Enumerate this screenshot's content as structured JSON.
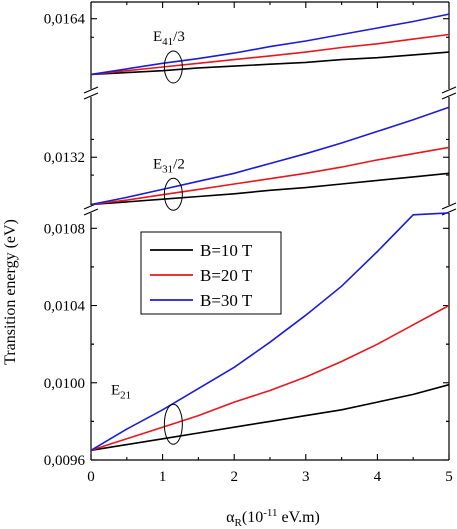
{
  "chart_data": {
    "type": "line",
    "xlabel": {
      "main": "α",
      "sub": "R",
      "rest": "(10",
      "sup": "-11",
      "tail": " eV.m)"
    },
    "ylabel": "Transition energy (eV)",
    "xlim": [
      0,
      5
    ],
    "x_ticks": [
      "0",
      "1",
      "2",
      "3",
      "4",
      "5"
    ],
    "legend_position": "left-middle",
    "colors": {
      "B=10 T": "#000000",
      "B=20 T": "#e8171b",
      "B=30 T": "#1c1cd6"
    },
    "legend": [
      "B=10 T",
      "B=20 T",
      "B=30 T"
    ],
    "panels": [
      {
        "id": "E41",
        "annotation": {
          "main": "E",
          "sub": "41",
          "tail": "/3"
        },
        "ylim": [
          0.0156,
          0.01658
        ],
        "y_ticks": [
          {
            "value": 0.0164,
            "label": "0,0164"
          }
        ],
        "x": [
          0,
          0.5,
          1,
          1.5,
          2,
          2.5,
          3,
          3.5,
          4,
          4.5,
          5
        ],
        "series": [
          {
            "name": "B=10 T",
            "values": [
              0.0158,
              0.01582,
              0.01584,
              0.01587,
              0.01589,
              0.01591,
              0.01593,
              0.01596,
              0.01598,
              0.01601,
              0.01604
            ]
          },
          {
            "name": "B=20 T",
            "values": [
              0.0158,
              0.01584,
              0.01588,
              0.01592,
              0.01596,
              0.016,
              0.01604,
              0.01609,
              0.01613,
              0.01618,
              0.01623
            ]
          },
          {
            "name": "B=30 T",
            "values": [
              0.0158,
              0.01586,
              0.01592,
              0.01597,
              0.01603,
              0.0161,
              0.01616,
              0.01623,
              0.0163,
              0.01637,
              0.01645
            ]
          }
        ]
      },
      {
        "id": "E31",
        "annotation": {
          "main": "E",
          "sub": "31",
          "tail": "/2"
        },
        "ylim": [
          0.01262,
          0.01392
        ],
        "y_ticks": [
          {
            "value": 0.0132,
            "label": "0,0132"
          }
        ],
        "x": [
          0,
          0.5,
          1,
          1.5,
          2,
          2.5,
          3,
          3.5,
          4,
          4.5,
          5
        ],
        "series": [
          {
            "name": "B=10 T",
            "values": [
              0.01267,
              0.0127,
              0.01273,
              0.01276,
              0.01279,
              0.01283,
              0.01286,
              0.0129,
              0.01294,
              0.01298,
              0.01302
            ]
          },
          {
            "name": "B=20 T",
            "values": [
              0.01267,
              0.01272,
              0.01278,
              0.01284,
              0.0129,
              0.01296,
              0.01302,
              0.01309,
              0.01317,
              0.01324,
              0.01331
            ]
          },
          {
            "name": "B=30 T",
            "values": [
              0.01267,
              0.01275,
              0.01284,
              0.01293,
              0.01302,
              0.01313,
              0.01324,
              0.01336,
              0.01349,
              0.01362,
              0.01376
            ]
          }
        ]
      },
      {
        "id": "E21",
        "annotation": {
          "main": "E",
          "sub": "21",
          "tail": ""
        },
        "ylim": [
          0.0096,
          0.0109
        ],
        "y_ticks": [
          {
            "value": 0.0096,
            "label": "0,0096"
          },
          {
            "value": 0.01,
            "label": "0,0100"
          },
          {
            "value": 0.0104,
            "label": "0,0104"
          },
          {
            "value": 0.0108,
            "label": "0,0108"
          }
        ],
        "x": [
          0,
          0.5,
          1,
          1.5,
          2,
          2.5,
          3,
          3.5,
          4,
          4.5,
          5
        ],
        "series": [
          {
            "name": "B=10 T",
            "values": [
              0.00965,
              0.00968,
              0.00971,
              0.00974,
              0.00977,
              0.0098,
              0.00983,
              0.00986,
              0.0099,
              0.00994,
              0.00999
            ]
          },
          {
            "name": "B=20 T",
            "values": [
              0.00965,
              0.00971,
              0.00977,
              0.00983,
              0.0099,
              0.00996,
              0.01003,
              0.01011,
              0.0102,
              0.0103,
              0.0104
            ]
          },
          {
            "name": "B=30 T",
            "values": [
              0.00965,
              0.00976,
              0.00986,
              0.00997,
              0.01008,
              0.01021,
              0.01035,
              0.0105,
              0.01068,
              0.01087,
              0.01088
            ]
          }
        ]
      }
    ]
  }
}
